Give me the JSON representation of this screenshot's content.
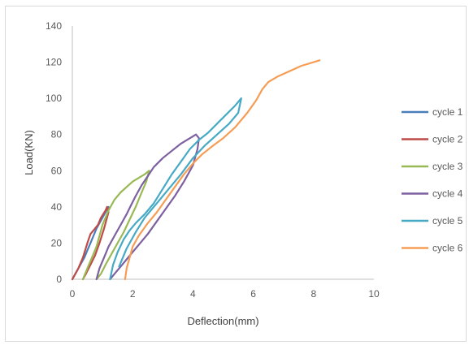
{
  "chart_data": {
    "type": "line",
    "title": "",
    "xlabel": "Deflection(mm)",
    "ylabel": "Load(KN)",
    "xlim": [
      0,
      10
    ],
    "ylim": [
      0,
      140
    ],
    "xticks": [
      0,
      2,
      4,
      6,
      8,
      10
    ],
    "yticks": [
      0,
      20,
      40,
      60,
      80,
      100,
      120,
      140
    ],
    "grid": false,
    "legend_position": "right",
    "series": [
      {
        "name": "cycle 1",
        "color": "#4a7ebb",
        "x": [
          0.0,
          0.1,
          0.2,
          0.3,
          0.4,
          0.5,
          0.6,
          0.7,
          0.8,
          0.9,
          1.0,
          1.1,
          1.2
        ],
        "y": [
          0,
          3,
          6,
          9,
          12,
          16,
          20,
          24,
          28,
          31,
          34,
          37,
          40
        ]
      },
      {
        "name": "cycle 2",
        "color": "#be4b48",
        "x": [
          0.0,
          0.2,
          0.35,
          0.5,
          0.6,
          0.7,
          0.85,
          0.95,
          1.1,
          1.15,
          1.2,
          1.05,
          0.9,
          0.75,
          0.6,
          0.45,
          0.35
        ],
        "y": [
          0,
          6,
          12,
          20,
          25,
          27,
          30,
          34,
          38,
          40,
          37,
          28,
          20,
          13,
          8,
          3,
          0
        ]
      },
      {
        "name": "cycle 3",
        "color": "#98b954",
        "x": [
          0.35,
          0.5,
          0.65,
          0.8,
          0.9,
          1.0,
          1.2,
          1.4,
          1.6,
          1.8,
          2.0,
          2.2,
          2.4,
          2.55,
          2.45,
          2.3,
          2.1,
          1.9,
          1.7,
          1.5,
          1.3,
          1.1,
          0.95,
          0.8
        ],
        "y": [
          0,
          6,
          12,
          18,
          24,
          30,
          38,
          44,
          48,
          51,
          54,
          56,
          58,
          60,
          54,
          48,
          40,
          33,
          26,
          20,
          14,
          8,
          3,
          0
        ]
      },
      {
        "name": "cycle 4",
        "color": "#7d60a0",
        "x": [
          0.8,
          0.9,
          1.05,
          1.2,
          1.4,
          1.6,
          1.8,
          1.95,
          2.1,
          2.3,
          2.5,
          2.7,
          3.0,
          3.3,
          3.6,
          3.9,
          4.1,
          4.2,
          4.15,
          4.0,
          3.7,
          3.4,
          3.1,
          2.8,
          2.5,
          2.2,
          1.9,
          1.6,
          1.4,
          1.25
        ],
        "y": [
          0,
          6,
          12,
          18,
          24,
          30,
          36,
          41,
          46,
          52,
          57,
          62,
          67,
          71,
          75,
          78,
          80,
          78,
          72,
          63,
          54,
          46,
          39,
          32,
          25,
          19,
          13,
          7,
          3,
          0
        ]
      },
      {
        "name": "cycle 5",
        "color": "#46aac5",
        "x": [
          1.25,
          1.35,
          1.5,
          1.7,
          1.9,
          2.1,
          2.4,
          2.7,
          3.0,
          3.3,
          3.6,
          3.9,
          4.2,
          4.5,
          4.8,
          5.1,
          5.4,
          5.6,
          5.5,
          5.2,
          4.8,
          4.4,
          4.0,
          3.6,
          3.2,
          2.8,
          2.4,
          2.1,
          1.8,
          1.55
        ],
        "y": [
          0,
          8,
          15,
          22,
          27,
          31,
          36,
          42,
          50,
          58,
          65,
          72,
          77,
          81,
          86,
          91,
          96,
          100,
          92,
          86,
          80,
          74,
          67,
          58,
          50,
          42,
          34,
          26,
          17,
          7
        ]
      },
      {
        "name": "cycle 6",
        "color": "#f59d56",
        "x": [
          1.75,
          1.8,
          1.9,
          2.0,
          2.2,
          2.5,
          2.8,
          3.1,
          3.4,
          3.7,
          4.0,
          4.3,
          4.6,
          5.0,
          5.4,
          5.8,
          6.1,
          6.3,
          6.5,
          6.8,
          7.2,
          7.6,
          8.0,
          8.2
        ],
        "y": [
          0,
          6,
          12,
          18,
          24,
          31,
          37,
          44,
          51,
          58,
          64,
          69,
          73,
          78,
          84,
          92,
          99,
          105,
          109,
          112,
          115,
          118,
          120,
          121
        ]
      }
    ]
  }
}
